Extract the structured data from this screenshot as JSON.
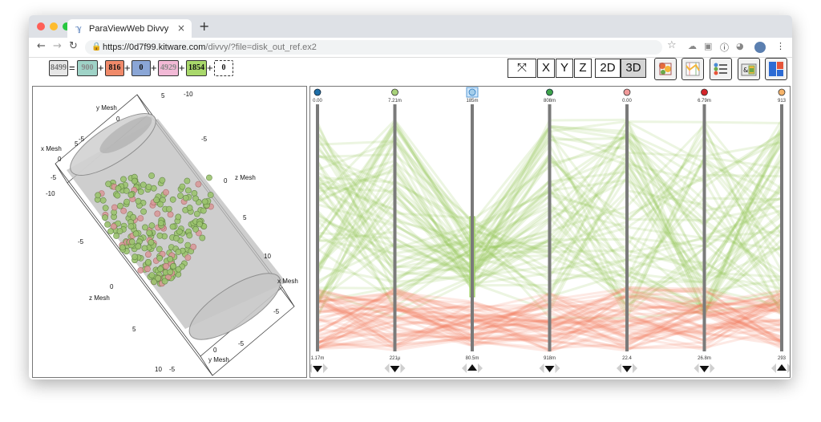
{
  "browser": {
    "tab_title": "ParaViewWeb Divvy",
    "tab_close": "×",
    "new_tab": "+",
    "url_host": "https://0d7f99.kitware.com",
    "url_path": "/divvy/?file=disk_out_ref.ex2"
  },
  "selection_equation": {
    "total": "8499",
    "equals": "=",
    "plus": "+",
    "items": [
      {
        "value": "900",
        "color": "#9fd3c7",
        "text_color": "#888888"
      },
      {
        "value": "816",
        "color": "#f08a6a",
        "text_color": "#111111"
      },
      {
        "value": "0",
        "color": "#8aa6d6",
        "text_color": "#111111"
      },
      {
        "value": "4929",
        "color": "#f2b9d6",
        "text_color": "#888888"
      },
      {
        "value": "1854",
        "color": "#a9d86b",
        "text_color": "#111111"
      },
      {
        "value": "0",
        "color": "#ffffff",
        "text_color": "#111111"
      }
    ]
  },
  "view_controls": {
    "reset_icon": "expand-arrows-icon",
    "x": "X",
    "y": "Y",
    "z": "Z",
    "mode_2d": "2D",
    "mode_3d": "3D"
  },
  "tool_icons": [
    "scatter-settings-icon",
    "parallel-coords-icon",
    "field-selector-icon",
    "histogram-legend-icon",
    "layout-icon"
  ],
  "scene_labels": {
    "y_mesh_top": "y Mesh",
    "x_mesh_left": "x Mesh",
    "z_mesh_right": "z Mesh",
    "x_mesh_right": "x Mesh",
    "z_mesh_bottom": "z Mesh",
    "y_mesh_bottom": "y Mesh",
    "ticks": {
      "t1": "5",
      "t2": "-10",
      "t3": "0",
      "t4": "-5",
      "t5": "5",
      "t6": "-5",
      "t7": "0",
      "t8": "-5",
      "t9": "-10",
      "t10": "0",
      "t11": "5",
      "t12": "-5",
      "t13": "10",
      "t14": "0",
      "t15": "-5",
      "t16": "5",
      "t17": "0",
      "t18": "-5",
      "t19": "10",
      "t20": "0",
      "t21": "5",
      "t22": "-5"
    }
  },
  "parallel_axes": [
    {
      "top": "0.00",
      "bottom": "1.17m",
      "dot": "#1f6fa8",
      "dot_stroke": "#123"
    },
    {
      "top": "7.21m",
      "bottom": "221µ",
      "dot": "#a8d27a",
      "dot_stroke": "#333"
    },
    {
      "top": "185m",
      "bottom": "80.5m",
      "dot": "#a4cdea",
      "dot_stroke": "#2c7bbf"
    },
    {
      "top": "808m",
      "bottom": "918m",
      "dot": "#3ea34a",
      "dot_stroke": "#123"
    },
    {
      "top": "0.00",
      "bottom": "22.4",
      "dot": "#f19a9a",
      "dot_stroke": "#333"
    },
    {
      "top": "6.79m",
      "bottom": "26.8m",
      "dot": "#d4252a",
      "dot_stroke": "#333"
    },
    {
      "top": "913",
      "bottom": "293",
      "dot": "#f5b36a",
      "dot_stroke": "#333"
    }
  ],
  "colors": {
    "green_band": "#93c95a",
    "red_band": "#f27c60",
    "axis": "#7a7a7a"
  }
}
